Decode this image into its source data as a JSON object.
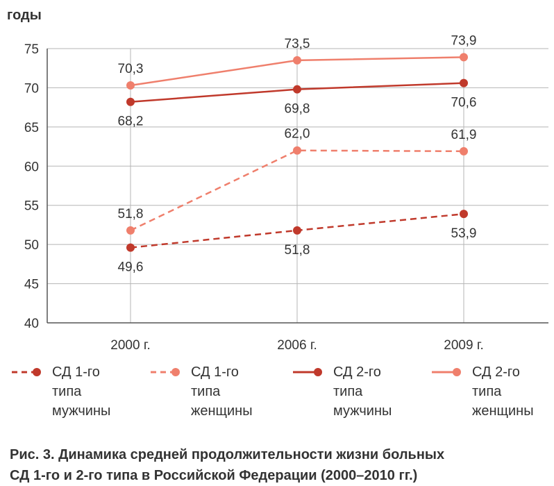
{
  "chart_data": {
    "type": "line",
    "ylabel": "годы",
    "ylim": [
      40,
      75
    ],
    "yticks": [
      "40",
      "45",
      "50",
      "55",
      "60",
      "65",
      "70",
      "75"
    ],
    "categories": [
      "2000 г.",
      "2006 г.",
      "2009 г."
    ],
    "grid": true,
    "legend_position": "bottom",
    "series": [
      {
        "name": "СД 1-го типа мужчины",
        "values": [
          49.6,
          51.8,
          53.9
        ],
        "labels": [
          "49,6",
          "51,8",
          "53,9"
        ],
        "color": "#c0392b",
        "dashed": true
      },
      {
        "name": "СД 1-го типа женщины",
        "values": [
          51.8,
          62.0,
          61.9
        ],
        "labels": [
          "51,8",
          "62,0",
          "61,9"
        ],
        "color": "#ef7f6c",
        "dashed": true
      },
      {
        "name": "СД 2-го типа мужчины",
        "values": [
          68.2,
          69.8,
          70.6
        ],
        "labels": [
          "68,2",
          "69,8",
          "70,6"
        ],
        "color": "#c0392b",
        "dashed": false
      },
      {
        "name": "СД 2-го типа женщины",
        "values": [
          70.3,
          73.5,
          73.9
        ],
        "labels": [
          "70,3",
          "73,5",
          "73,9"
        ],
        "color": "#ef7f6c",
        "dashed": false
      }
    ]
  },
  "legend": [
    {
      "line1": "СД 1-го",
      "line2": "типа",
      "line3": "мужчины"
    },
    {
      "line1": "СД 1-го",
      "line2": "типа",
      "line3": "женщины"
    },
    {
      "line1": "СД 2-го",
      "line2": "типа",
      "line3": "мужчины"
    },
    {
      "line1": "СД 2-го",
      "line2": "типа",
      "line3": "женщины"
    }
  ],
  "caption": {
    "line1": "Рис. 3. Динамика средней продолжительности жизни больных",
    "line2": "СД 1-го и 2-го типа в Российской Федерации (2000–2010 гг.)"
  }
}
